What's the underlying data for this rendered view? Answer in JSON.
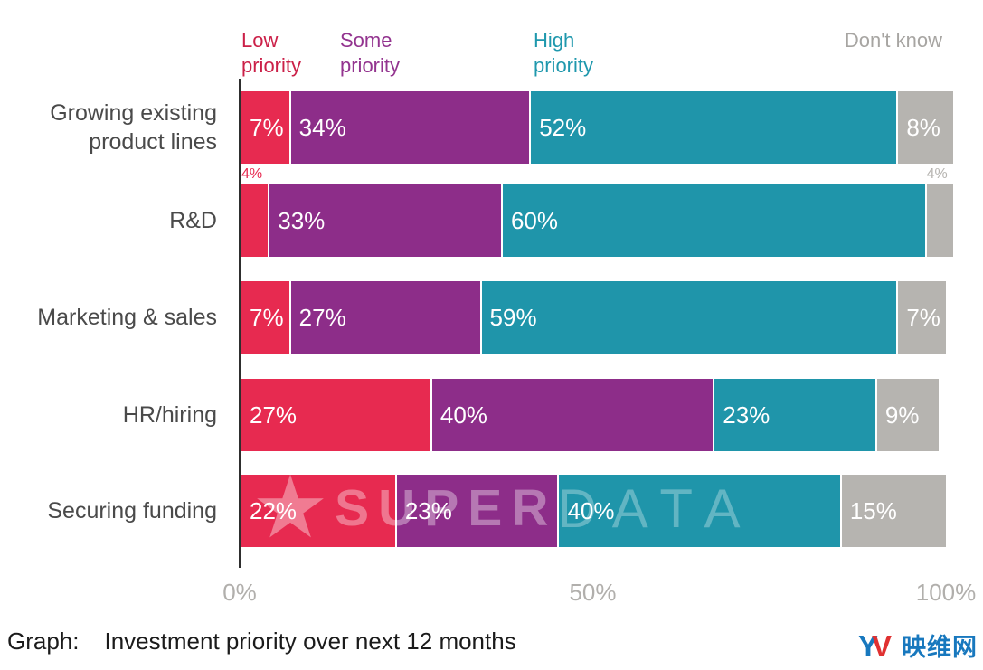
{
  "legend": [
    {
      "label": "Low priority",
      "color": "#cb2048"
    },
    {
      "label": "Some priority",
      "color": "#93348f"
    },
    {
      "label": "High priority",
      "color": "#1f98ad"
    },
    {
      "label": "Don't know",
      "color": "#a7a5a2"
    }
  ],
  "chart_data": {
    "type": "bar",
    "orientation": "horizontal",
    "stacked": true,
    "grid": false,
    "legend_position": "top",
    "xlim": [
      0,
      100
    ],
    "value_suffix": "%",
    "small_label_threshold": 5,
    "categories": [
      "Growing existing product lines",
      "R&D",
      "Marketing & sales",
      "HR/hiring",
      "Securing funding"
    ],
    "series": [
      {
        "name": "Low priority",
        "color": "#e72a50",
        "values": [
          7,
          4,
          7,
          27,
          22
        ]
      },
      {
        "name": "Some priority",
        "color": "#8d2d89",
        "values": [
          34,
          33,
          27,
          40,
          23
        ]
      },
      {
        "name": "High priority",
        "color": "#1f95aa",
        "values": [
          52,
          60,
          59,
          23,
          40
        ]
      },
      {
        "name": "Don't know",
        "color": "#b6b4b0",
        "values": [
          8,
          4,
          7,
          9,
          15
        ]
      }
    ],
    "x_ticks": [
      {
        "label": "0%",
        "value": 0
      },
      {
        "label": "50%",
        "value": 50
      },
      {
        "label": "100%",
        "value": 100
      }
    ]
  },
  "watermark": {
    "star": "★",
    "bold_text": "SUPER",
    "light_text": "DATA"
  },
  "caption": {
    "prefix": "Graph:",
    "text": "Investment priority over next 12 months"
  },
  "logo": {
    "mark_letters": "YV",
    "text": "映维网",
    "blue": "#1878be",
    "red": "#e03131"
  }
}
